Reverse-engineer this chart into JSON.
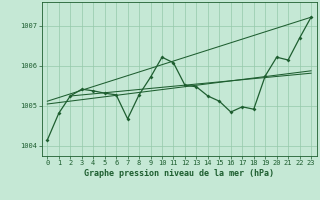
{
  "xlabel": "Graphe pression niveau de la mer (hPa)",
  "background_color": "#c5e8d5",
  "grid_color": "#95c9aa",
  "line_color": "#1e5e30",
  "xlim": [
    -0.5,
    23.5
  ],
  "ylim": [
    1003.75,
    1007.6
  ],
  "yticks": [
    1004,
    1005,
    1006,
    1007
  ],
  "xticks": [
    0,
    1,
    2,
    3,
    4,
    5,
    6,
    7,
    8,
    9,
    10,
    11,
    12,
    13,
    14,
    15,
    16,
    17,
    18,
    19,
    20,
    21,
    22,
    23
  ],
  "main_line_x": [
    0,
    1,
    2,
    3,
    4,
    5,
    6,
    7,
    8,
    9,
    10,
    11,
    12,
    13,
    14,
    15,
    16,
    17,
    18,
    19,
    20,
    21,
    22,
    23
  ],
  "main_line_y": [
    1004.15,
    1004.82,
    1005.25,
    1005.42,
    1005.38,
    1005.32,
    1005.28,
    1004.68,
    1005.28,
    1005.72,
    1006.22,
    1006.08,
    1005.52,
    1005.48,
    1005.25,
    1005.12,
    1004.85,
    1004.98,
    1004.92,
    1005.75,
    1006.22,
    1006.15,
    1006.7,
    1007.22
  ],
  "trend_line1_x": [
    0,
    23
  ],
  "trend_line1_y": [
    1005.05,
    1005.88
  ],
  "trend_line2_x": [
    0,
    23
  ],
  "trend_line2_y": [
    1005.12,
    1007.22
  ],
  "trend_line3_x": [
    2,
    23
  ],
  "trend_line3_y": [
    1005.25,
    1005.82
  ]
}
